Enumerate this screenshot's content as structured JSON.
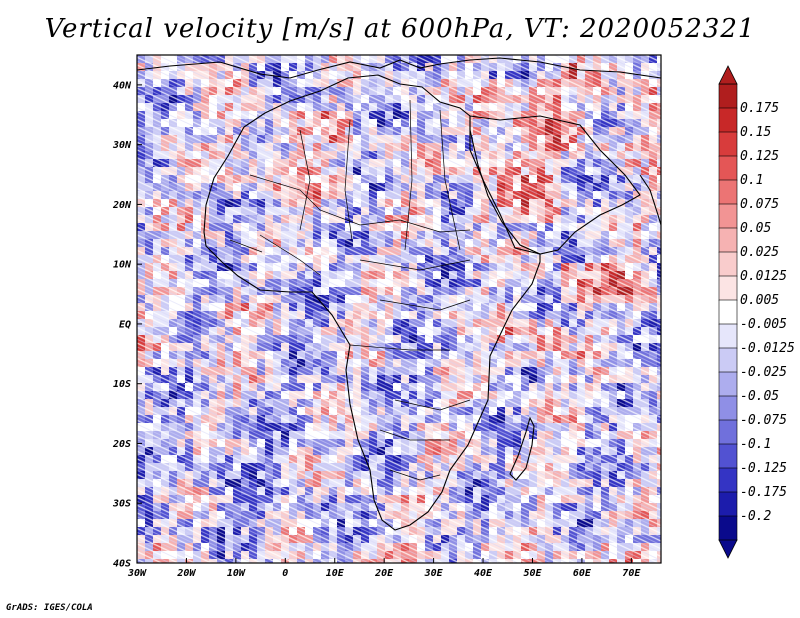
{
  "title": "Vertical velocity [m/s] at 600hPa, VT: 2020052321",
  "credit": "GrADS: IGES/COLA",
  "chart_data": {
    "type": "heatmap",
    "title": "Vertical velocity [m/s] at 600hPa, VT: 2020052321",
    "variable": "Vertical velocity",
    "units": "m/s",
    "level": "600hPa",
    "valid_time": "2020052321",
    "x_range": [
      -30,
      76
    ],
    "y_range": [
      -40,
      45
    ],
    "x_ticks": [
      {
        "value": -30,
        "label": "30W"
      },
      {
        "value": -20,
        "label": "20W"
      },
      {
        "value": -10,
        "label": "10W"
      },
      {
        "value": 0,
        "label": "0"
      },
      {
        "value": 10,
        "label": "10E"
      },
      {
        "value": 20,
        "label": "20E"
      },
      {
        "value": 30,
        "label": "30E"
      },
      {
        "value": 40,
        "label": "40E"
      },
      {
        "value": 50,
        "label": "50E"
      },
      {
        "value": 60,
        "label": "60E"
      },
      {
        "value": 70,
        "label": "70E"
      }
    ],
    "y_ticks": [
      {
        "value": 40,
        "label": "40N"
      },
      {
        "value": 30,
        "label": "30N"
      },
      {
        "value": 20,
        "label": "20N"
      },
      {
        "value": 10,
        "label": "10N"
      },
      {
        "value": 0,
        "label": "EQ"
      },
      {
        "value": -10,
        "label": "10S"
      },
      {
        "value": -20,
        "label": "20S"
      },
      {
        "value": -30,
        "label": "30S"
      },
      {
        "value": -40,
        "label": "40S"
      }
    ],
    "colorbar": {
      "labels": [
        "0.175",
        "0.15",
        "0.125",
        "0.1",
        "0.075",
        "0.05",
        "0.025",
        "0.0125",
        "0.005",
        "-0.005",
        "-0.0125",
        "-0.025",
        "-0.05",
        "-0.075",
        "-0.1",
        "-0.125",
        "-0.175",
        "-0.2"
      ],
      "colors": [
        "#b01e1e",
        "#c82828",
        "#d83c3c",
        "#e45656",
        "#ec7474",
        "#f29494",
        "#f6b2b2",
        "#f9cccc",
        "#fce4e4",
        "#ffffff",
        "#e6e6fb",
        "#cbcbf5",
        "#adadee",
        "#8f8fe6",
        "#7070dc",
        "#5252d2",
        "#3434c4",
        "#1c1cac",
        "#0a0a8c"
      ]
    }
  }
}
